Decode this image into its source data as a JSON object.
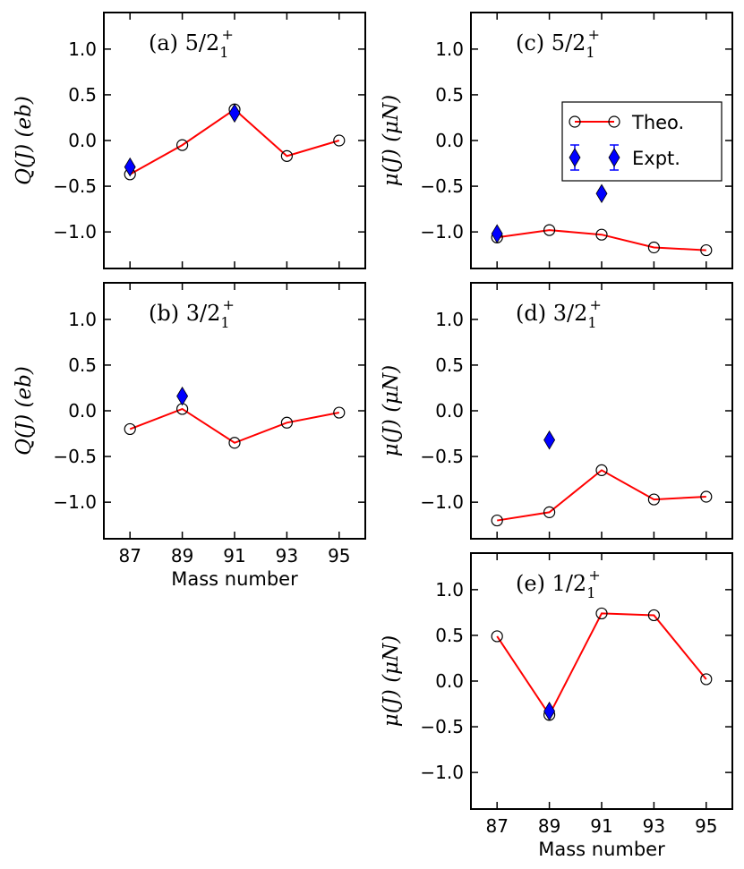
{
  "chart_data": [
    {
      "id": "a",
      "type": "line",
      "label": "(a) 5/2",
      "label_sub": "1",
      "label_sup": "+",
      "ylabel": "Q(J) (eb)",
      "xlabel": "",
      "ylim": [
        -1.4,
        1.4
      ],
      "xlim": [
        86,
        96
      ],
      "yticks": [
        "1.0",
        "0.5",
        "0.0",
        "−0.5",
        "−1.0"
      ],
      "ytick_values": [
        1.0,
        0.5,
        0.0,
        -0.5,
        -1.0
      ],
      "xticks": [
        87,
        89,
        91,
        93,
        95
      ],
      "show_xticklabels": false,
      "series": [
        {
          "name": "Theo.",
          "x": [
            87,
            89,
            91,
            93,
            95
          ],
          "values": [
            -0.37,
            -0.05,
            0.34,
            -0.17,
            0.0
          ]
        },
        {
          "name": "Expt.",
          "x": [
            87,
            91
          ],
          "values": [
            -0.29,
            0.3
          ],
          "err": [
            0.03,
            0.03
          ]
        }
      ]
    },
    {
      "id": "b",
      "type": "line",
      "label": "(b) 3/2",
      "label_sub": "1",
      "label_sup": "+",
      "ylabel": "Q(J) (eb)",
      "xlabel": "Mass number",
      "ylim": [
        -1.4,
        1.4
      ],
      "xlim": [
        86,
        96
      ],
      "yticks": [
        "1.0",
        "0.5",
        "0.0",
        "−0.5",
        "−1.0"
      ],
      "ytick_values": [
        1.0,
        0.5,
        0.0,
        -0.5,
        -1.0
      ],
      "xticks": [
        87,
        89,
        91,
        93,
        95
      ],
      "xtick_labels": [
        "87",
        "89",
        "91",
        "93",
        "95"
      ],
      "show_xticklabels": true,
      "series": [
        {
          "name": "Theo.",
          "x": [
            87,
            89,
            91,
            93,
            95
          ],
          "values": [
            -0.2,
            0.02,
            -0.35,
            -0.13,
            -0.02
          ]
        },
        {
          "name": "Expt.",
          "x": [
            89
          ],
          "values": [
            0.16
          ],
          "err": [
            0.05
          ]
        }
      ]
    },
    {
      "id": "c",
      "type": "line",
      "label": "(c) 5/2",
      "label_sub": "1",
      "label_sup": "+",
      "ylabel": "μ(J) (μN)",
      "xlabel": "",
      "ylim": [
        -1.4,
        1.4
      ],
      "xlim": [
        86,
        96
      ],
      "yticks": [
        "1.0",
        "0.5",
        "0.0",
        "−0.5",
        "−1.0"
      ],
      "ytick_values": [
        1.0,
        0.5,
        0.0,
        -0.5,
        -1.0
      ],
      "xticks": [
        87,
        89,
        91,
        93,
        95
      ],
      "show_xticklabels": false,
      "legend": {
        "position": "upper-right",
        "entries": [
          "Theo.",
          "Expt."
        ]
      },
      "series": [
        {
          "name": "Theo.",
          "x": [
            87,
            89,
            91,
            93,
            95
          ],
          "values": [
            -1.06,
            -0.98,
            -1.03,
            -1.17,
            -1.2
          ]
        },
        {
          "name": "Expt.",
          "x": [
            87,
            91
          ],
          "values": [
            -1.02,
            -0.58
          ],
          "err": [
            0.02,
            0.02
          ]
        }
      ]
    },
    {
      "id": "d",
      "type": "line",
      "label": "(d) 3/2",
      "label_sub": "1",
      "label_sup": "+",
      "ylabel": "μ(J) (μN)",
      "xlabel": "",
      "ylim": [
        -1.4,
        1.4
      ],
      "xlim": [
        86,
        96
      ],
      "yticks": [
        "1.0",
        "0.5",
        "0.0",
        "−0.5",
        "−1.0"
      ],
      "ytick_values": [
        1.0,
        0.5,
        0.0,
        -0.5,
        -1.0
      ],
      "xticks": [
        87,
        89,
        91,
        93,
        95
      ],
      "show_xticklabels": false,
      "series": [
        {
          "name": "Theo.",
          "x": [
            87,
            89,
            91,
            93,
            95
          ],
          "values": [
            -1.2,
            -1.11,
            -0.65,
            -0.97,
            -0.94
          ]
        },
        {
          "name": "Expt.",
          "x": [
            89
          ],
          "values": [
            -0.32
          ],
          "err": [
            0.02
          ]
        }
      ]
    },
    {
      "id": "e",
      "type": "line",
      "label": "(e) 1/2",
      "label_sub": "1",
      "label_sup": "+",
      "ylabel": "μ(J) (μN)",
      "xlabel": "Mass number",
      "ylim": [
        -1.4,
        1.4
      ],
      "xlim": [
        86,
        96
      ],
      "yticks": [
        "1.0",
        "0.5",
        "0.0",
        "−0.5",
        "−1.0"
      ],
      "ytick_values": [
        1.0,
        0.5,
        0.0,
        -0.5,
        -1.0
      ],
      "xticks": [
        87,
        89,
        91,
        93,
        95
      ],
      "xtick_labels": [
        "87",
        "89",
        "91",
        "93",
        "95"
      ],
      "show_xticklabels": true,
      "series": [
        {
          "name": "Theo.",
          "x": [
            87,
            89,
            91,
            93,
            95
          ],
          "values": [
            0.49,
            -0.37,
            0.74,
            0.72,
            0.02
          ]
        },
        {
          "name": "Expt.",
          "x": [
            89
          ],
          "values": [
            -0.33
          ],
          "err": [
            0.02
          ]
        }
      ]
    }
  ],
  "colors": {
    "theo_line": "#ff0000",
    "theo_marker_edge": "#000000",
    "expt_marker": "#0000ff"
  }
}
